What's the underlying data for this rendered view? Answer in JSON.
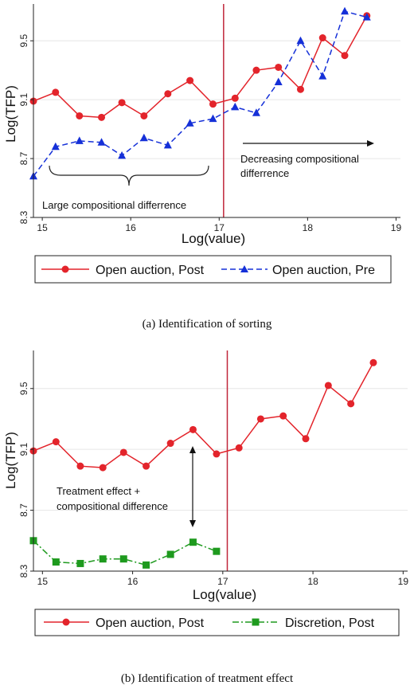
{
  "colors": {
    "open_post": "#e3242b",
    "open_pre": "#1530d8",
    "discretion_post": "#1e9a1e",
    "vline": "#c0263a",
    "grid": "#e6e6e6"
  },
  "chart_data": [
    {
      "type": "line",
      "caption": "(a)  Identification of sorting",
      "xlabel": "Log(value)",
      "ylabel": "Log(TFP)",
      "xlim": [
        14.9,
        19.05
      ],
      "ylim": [
        8.3,
        9.75
      ],
      "xticks": [
        15,
        16,
        17,
        18,
        19
      ],
      "yticks": [
        8.3,
        8.7,
        9.1,
        9.5
      ],
      "grid": true,
      "vline_x": 17.05,
      "series": [
        {
          "name": "Open auction, Post",
          "marker": "circle",
          "dash": "solid",
          "x": [
            14.9,
            15.15,
            15.42,
            15.67,
            15.9,
            16.15,
            16.42,
            16.67,
            16.93,
            17.18,
            17.42,
            17.67,
            17.92,
            18.17,
            18.42,
            18.67
          ],
          "y": [
            9.09,
            9.15,
            8.99,
            8.98,
            9.08,
            8.99,
            9.14,
            9.23,
            9.07,
            9.11,
            9.3,
            9.32,
            9.17,
            9.52,
            9.4,
            9.67
          ]
        },
        {
          "name": "Open auction, Pre",
          "marker": "triangle",
          "dash": "dashed",
          "x": [
            14.9,
            15.15,
            15.42,
            15.67,
            15.9,
            16.15,
            16.42,
            16.67,
            16.93,
            17.18,
            17.42,
            17.67,
            17.92,
            18.17,
            18.42,
            18.67
          ],
          "y": [
            8.58,
            8.78,
            8.82,
            8.81,
            8.72,
            8.84,
            8.79,
            8.94,
            8.97,
            9.05,
            9.01,
            9.22,
            9.5,
            9.26,
            9.7,
            9.66
          ]
        }
      ],
      "annotations": {
        "brace_text": "Large compositional differrence",
        "arrow_text_line1": "Decreasing compositional",
        "arrow_text_line2": "differrence"
      }
    },
    {
      "type": "line",
      "caption": "(b)  Identification of treatment effect",
      "xlabel": "Log(value)",
      "ylabel": "Log(TFP)",
      "xlim": [
        14.9,
        19.05
      ],
      "ylim": [
        8.3,
        9.75
      ],
      "xticks": [
        15,
        16,
        17,
        18,
        19
      ],
      "yticks": [
        8.3,
        8.7,
        9.1,
        9.5
      ],
      "grid": true,
      "vline_x": 17.05,
      "series": [
        {
          "name": "Open auction, Post",
          "marker": "circle",
          "dash": "solid",
          "x": [
            14.9,
            15.15,
            15.42,
            15.67,
            15.9,
            16.15,
            16.42,
            16.67,
            16.93,
            17.18,
            17.42,
            17.67,
            17.92,
            18.17,
            18.42,
            18.67
          ],
          "y": [
            9.09,
            9.15,
            8.99,
            8.98,
            9.08,
            8.99,
            9.14,
            9.23,
            9.07,
            9.11,
            9.3,
            9.32,
            9.17,
            9.52,
            9.4,
            9.67
          ]
        },
        {
          "name": "Discretion, Post",
          "marker": "square",
          "dash": "dashdot",
          "x": [
            14.9,
            15.15,
            15.42,
            15.67,
            15.9,
            16.15,
            16.42,
            16.67,
            16.93
          ],
          "y": [
            8.5,
            8.36,
            8.35,
            8.38,
            8.38,
            8.34,
            8.41,
            8.49,
            8.43
          ]
        }
      ],
      "annotations": {
        "arrow_text_line1": "Treatment effect +",
        "arrow_text_line2": "compositional difference"
      }
    }
  ]
}
